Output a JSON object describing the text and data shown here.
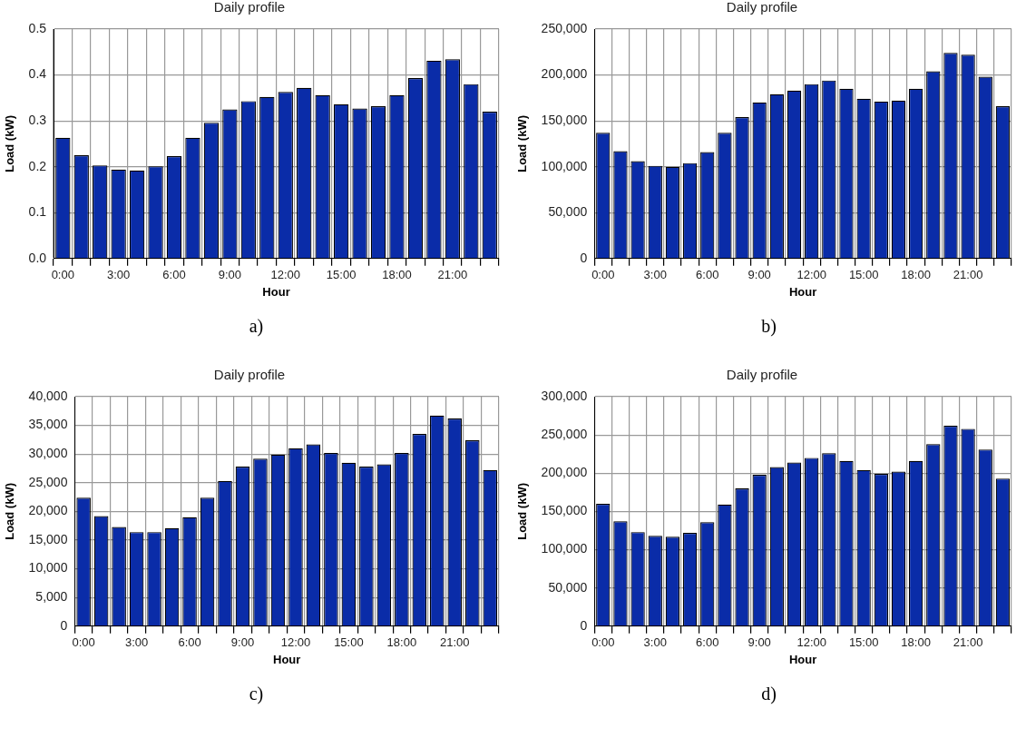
{
  "chart_data": [
    {
      "type": "bar",
      "title": "Daily profile",
      "xlabel": "Hour",
      "ylabel": "Load (kW)",
      "annotations": [
        "a)"
      ],
      "grid": true,
      "legend": false,
      "color": "#0a2ca8",
      "categories": [
        "0:00",
        null,
        null,
        "3:00",
        null,
        null,
        "6:00",
        null,
        null,
        "9:00",
        null,
        null,
        "12:00",
        null,
        null,
        "15:00",
        null,
        null,
        "18:00",
        null,
        null,
        "21:00",
        null,
        null
      ],
      "values": [
        0.263,
        0.225,
        0.203,
        0.194,
        0.192,
        0.201,
        0.223,
        0.263,
        0.296,
        0.325,
        0.343,
        0.352,
        0.363,
        0.372,
        0.356,
        0.336,
        0.327,
        0.332,
        0.356,
        0.393,
        0.431,
        0.434,
        0.38,
        0.32
      ],
      "ylim": [
        0,
        0.5
      ],
      "yticks": [
        {
          "value": 0,
          "label": "0.0"
        },
        0.1,
        0.2,
        0.3,
        0.4,
        0.5
      ]
    },
    {
      "type": "bar",
      "title": "Daily profile",
      "xlabel": "Hour",
      "ylabel": "Load (kW)",
      "annotations": [
        "b)"
      ],
      "grid": true,
      "legend": false,
      "color": "#0a2ca8",
      "categories": [
        "0:00",
        null,
        null,
        "3:00",
        null,
        null,
        "6:00",
        null,
        null,
        "9:00",
        null,
        null,
        "12:00",
        null,
        null,
        "15:00",
        null,
        null,
        "18:00",
        null,
        null,
        "21:00",
        null,
        null
      ],
      "values": [
        137000,
        117000,
        106000,
        101000,
        100000,
        104000,
        116000,
        137000,
        154000,
        170000,
        179000,
        183000,
        190000,
        194000,
        185000,
        174000,
        171000,
        172000,
        185000,
        204000,
        224000,
        222000,
        198000,
        166000
      ],
      "ylim": [
        0,
        250000
      ],
      "yticks": [
        0,
        {
          "value": 50000,
          "label": "50,000"
        },
        {
          "value": 100000,
          "label": "100,000"
        },
        {
          "value": 150000,
          "label": "150,000"
        },
        {
          "value": 200000,
          "label": "200,000"
        },
        {
          "value": 250000,
          "label": "250,000"
        }
      ]
    },
    {
      "type": "bar",
      "title": "Daily profile",
      "xlabel": "Hour",
      "ylabel": "Load (kW)",
      "annotations": [
        "c)"
      ],
      "grid": true,
      "legend": false,
      "color": "#0a2ca8",
      "categories": [
        "0:00",
        null,
        null,
        "3:00",
        null,
        null,
        "6:00",
        null,
        null,
        "9:00",
        null,
        null,
        "12:00",
        null,
        null,
        "15:00",
        null,
        null,
        "18:00",
        null,
        null,
        "21:00",
        null,
        null
      ],
      "values": [
        22400,
        19200,
        17300,
        16400,
        16400,
        17100,
        19000,
        22400,
        25300,
        27800,
        29200,
        29900,
        31000,
        31700,
        30200,
        28500,
        27800,
        28200,
        30200,
        33500,
        36700,
        36200,
        32400,
        27200
      ],
      "ylim": [
        0,
        40000
      ],
      "yticks": [
        0,
        {
          "value": 5000,
          "label": "5,000"
        },
        {
          "value": 10000,
          "label": "10,000"
        },
        {
          "value": 15000,
          "label": "15,000"
        },
        {
          "value": 20000,
          "label": "20,000"
        },
        {
          "value": 25000,
          "label": "25,000"
        },
        {
          "value": 30000,
          "label": "30,000"
        },
        {
          "value": 35000,
          "label": "35,000"
        },
        {
          "value": 40000,
          "label": "40,000"
        }
      ]
    },
    {
      "type": "bar",
      "title": "Daily profile",
      "xlabel": "Hour",
      "ylabel": "Load (kW)",
      "annotations": [
        "d)"
      ],
      "grid": true,
      "legend": false,
      "color": "#0a2ca8",
      "categories": [
        "0:00",
        null,
        null,
        "3:00",
        null,
        null,
        "6:00",
        null,
        null,
        "9:00",
        null,
        null,
        "12:00",
        null,
        null,
        "15:00",
        null,
        null,
        "18:00",
        null,
        null,
        "21:00",
        null,
        null
      ],
      "values": [
        160000,
        137000,
        123000,
        118000,
        117000,
        122000,
        136000,
        159000,
        180000,
        198000,
        208000,
        214000,
        220000,
        226000,
        216000,
        204000,
        199000,
        202000,
        216000,
        238000,
        262000,
        258000,
        231000,
        193000
      ],
      "ylim": [
        0,
        300000
      ],
      "yticks": [
        0,
        {
          "value": 50000,
          "label": "50,000"
        },
        {
          "value": 100000,
          "label": "100,000"
        },
        {
          "value": 150000,
          "label": "150,000"
        },
        {
          "value": 200000,
          "label": "200,000"
        },
        {
          "value": 250000,
          "label": "250,000"
        },
        {
          "value": 300000,
          "label": "300,000"
        }
      ]
    }
  ]
}
